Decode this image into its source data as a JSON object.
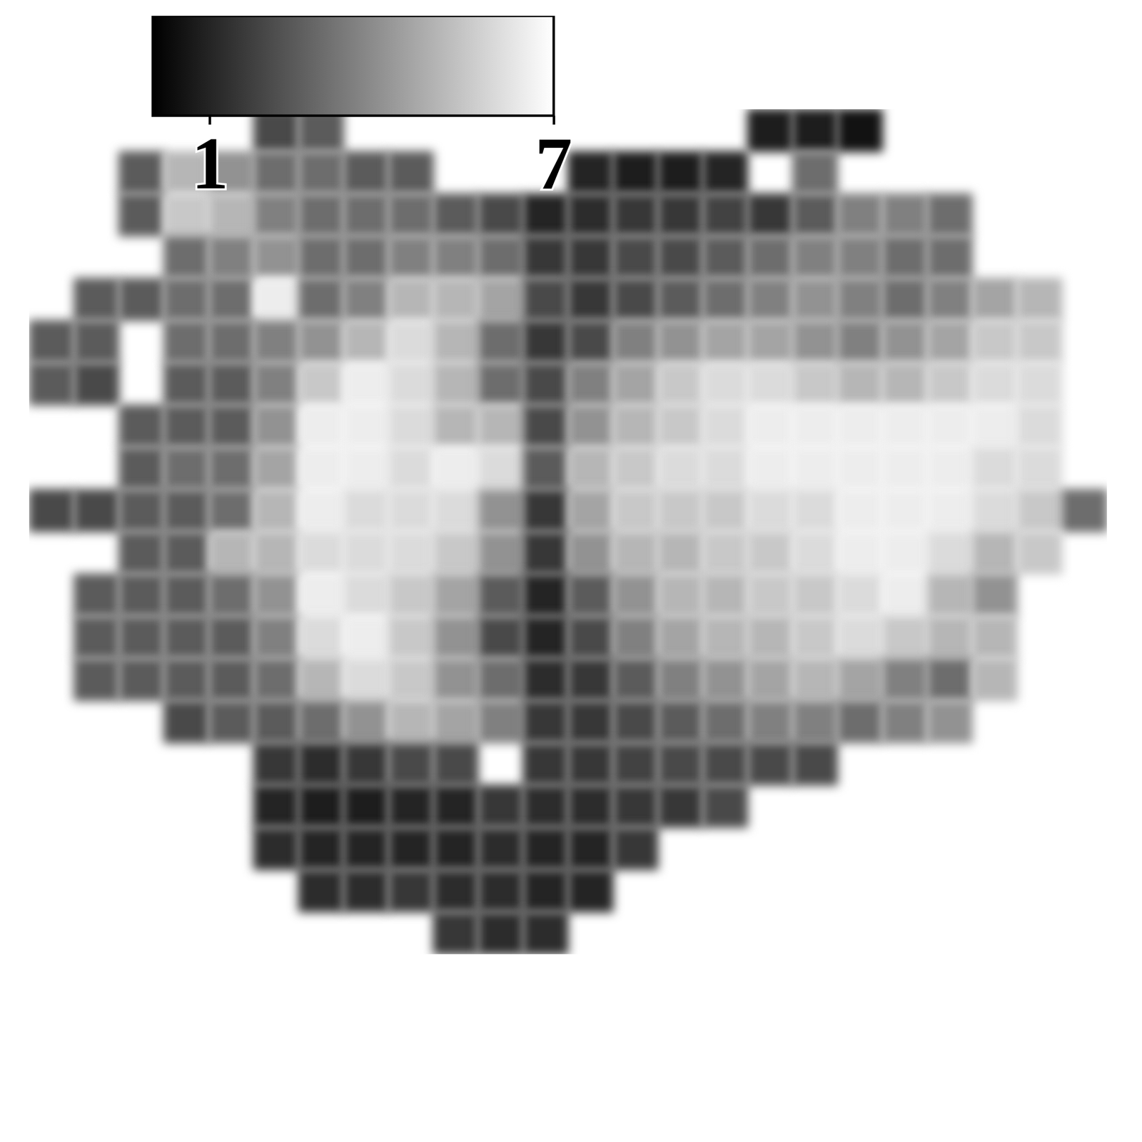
{
  "chart_data": {
    "type": "heatmap",
    "tick_labels": false,
    "colorbar": {
      "lim": [
        0,
        7
      ],
      "ticks": [
        1,
        7
      ]
    },
    "cells": [
      [
        null,
        null,
        null,
        null,
        null,
        2,
        2.5,
        null,
        null,
        null,
        null,
        null,
        null,
        null,
        null,
        null,
        0.8,
        0.8,
        0.5,
        null,
        null,
        null,
        null,
        null
      ],
      [
        null,
        null,
        2.5,
        5,
        4,
        3,
        3,
        2.5,
        2.5,
        null,
        null,
        null,
        1,
        0.8,
        0.8,
        1,
        null,
        3,
        null,
        null,
        null,
        null,
        null,
        null
      ],
      [
        null,
        null,
        2.5,
        5.5,
        5,
        3.5,
        3,
        3,
        3,
        2.5,
        2,
        1,
        1.2,
        1.5,
        1.5,
        1.8,
        1.5,
        2.5,
        3.5,
        3.5,
        3,
        null,
        null,
        null
      ],
      [
        null,
        null,
        null,
        3,
        3.5,
        4,
        3,
        3,
        3.5,
        3.5,
        3,
        1.5,
        1.5,
        2,
        2,
        2.5,
        3,
        3.5,
        3.5,
        3,
        3,
        null,
        null,
        null
      ],
      [
        null,
        2.5,
        2.5,
        3,
        3,
        6.5,
        3,
        3.5,
        5,
        5,
        4.5,
        2,
        1.5,
        2,
        2.5,
        3,
        3.5,
        4,
        3.5,
        3,
        3.5,
        4.5,
        5,
        null
      ],
      [
        2.5,
        2.5,
        null,
        3,
        3,
        3.5,
        4,
        5,
        6,
        5,
        3,
        1.5,
        2,
        3.5,
        4,
        4.5,
        4.5,
        4,
        3.5,
        4,
        4.5,
        5.5,
        5.5,
        null
      ],
      [
        2.5,
        2,
        null,
        2.5,
        2.5,
        3.5,
        5.5,
        6.5,
        6,
        5,
        3,
        2,
        3.5,
        4.5,
        5.5,
        6,
        6,
        5.5,
        5,
        5,
        5.5,
        6,
        6,
        null
      ],
      [
        null,
        null,
        2.5,
        2.5,
        2.5,
        4,
        6.5,
        6.5,
        6,
        5,
        5,
        2,
        4,
        5,
        5.5,
        6,
        6.5,
        6.5,
        6.5,
        6.5,
        6.5,
        6.5,
        6,
        null
      ],
      [
        null,
        null,
        2.5,
        3,
        3,
        4.5,
        6.5,
        6.5,
        6,
        6.5,
        6,
        2.5,
        5,
        5.5,
        6,
        6,
        6.5,
        6.5,
        6.5,
        6.5,
        6.5,
        6,
        6,
        null
      ],
      [
        2,
        2,
        2.5,
        2.5,
        3,
        5,
        6.5,
        6,
        6,
        6,
        4,
        1.5,
        4.5,
        5.5,
        5.5,
        5.5,
        6,
        6,
        6.5,
        6.5,
        6.5,
        6,
        5.5,
        3
      ],
      [
        null,
        null,
        2.5,
        2.5,
        5,
        5,
        6,
        6,
        6,
        5.5,
        4,
        1.5,
        4,
        5,
        5,
        5.5,
        5.5,
        6,
        6.5,
        6.5,
        6,
        5,
        5.5,
        null
      ],
      [
        null,
        2.5,
        2.5,
        2.5,
        3,
        4,
        6.5,
        6,
        5.5,
        4.5,
        2.5,
        1,
        2.5,
        4,
        5,
        5,
        5.5,
        5.5,
        6,
        6.5,
        5,
        4,
        null,
        null
      ],
      [
        null,
        2.5,
        2.5,
        2.5,
        2.5,
        3.5,
        6,
        6.5,
        5.5,
        4,
        2,
        1,
        2,
        3.5,
        4.5,
        5,
        5,
        5.5,
        6,
        5.5,
        5,
        5,
        null,
        null
      ],
      [
        null,
        2.5,
        2.5,
        2.5,
        2.5,
        3,
        5,
        6,
        5.5,
        4,
        3,
        1.2,
        1.5,
        2.5,
        3.5,
        4,
        4.5,
        5,
        4.5,
        3.5,
        3,
        5,
        null,
        null
      ],
      [
        null,
        null,
        null,
        2,
        2.5,
        2.5,
        3,
        4,
        5,
        4.5,
        3.5,
        1.5,
        1.5,
        2,
        2.5,
        3,
        3.5,
        3.5,
        3,
        3.5,
        4,
        null,
        null,
        null
      ],
      [
        null,
        null,
        null,
        null,
        null,
        1.5,
        1.2,
        1.5,
        2,
        2,
        null,
        1.5,
        1.5,
        1.8,
        2,
        2,
        2,
        2,
        null,
        null,
        null,
        null,
        null,
        null
      ],
      [
        null,
        null,
        null,
        null,
        null,
        1,
        0.8,
        0.8,
        1,
        1,
        1.5,
        1.2,
        1.2,
        1.5,
        1.5,
        2,
        null,
        null,
        null,
        null,
        null,
        null,
        null,
        null
      ],
      [
        null,
        null,
        null,
        null,
        null,
        1.2,
        1,
        1,
        1,
        1,
        1.2,
        1,
        1,
        1.5,
        null,
        null,
        null,
        null,
        null,
        null,
        null,
        null,
        null,
        null
      ],
      [
        null,
        null,
        null,
        null,
        null,
        null,
        1.2,
        1.2,
        1.5,
        1.2,
        1.2,
        1,
        1,
        null,
        null,
        null,
        null,
        null,
        null,
        null,
        null,
        null,
        null,
        null
      ],
      [
        null,
        null,
        null,
        null,
        null,
        null,
        null,
        null,
        null,
        1.5,
        1.2,
        1.2,
        null,
        null,
        null,
        null,
        null,
        null,
        null,
        null,
        null,
        null,
        null,
        null
      ]
    ]
  }
}
